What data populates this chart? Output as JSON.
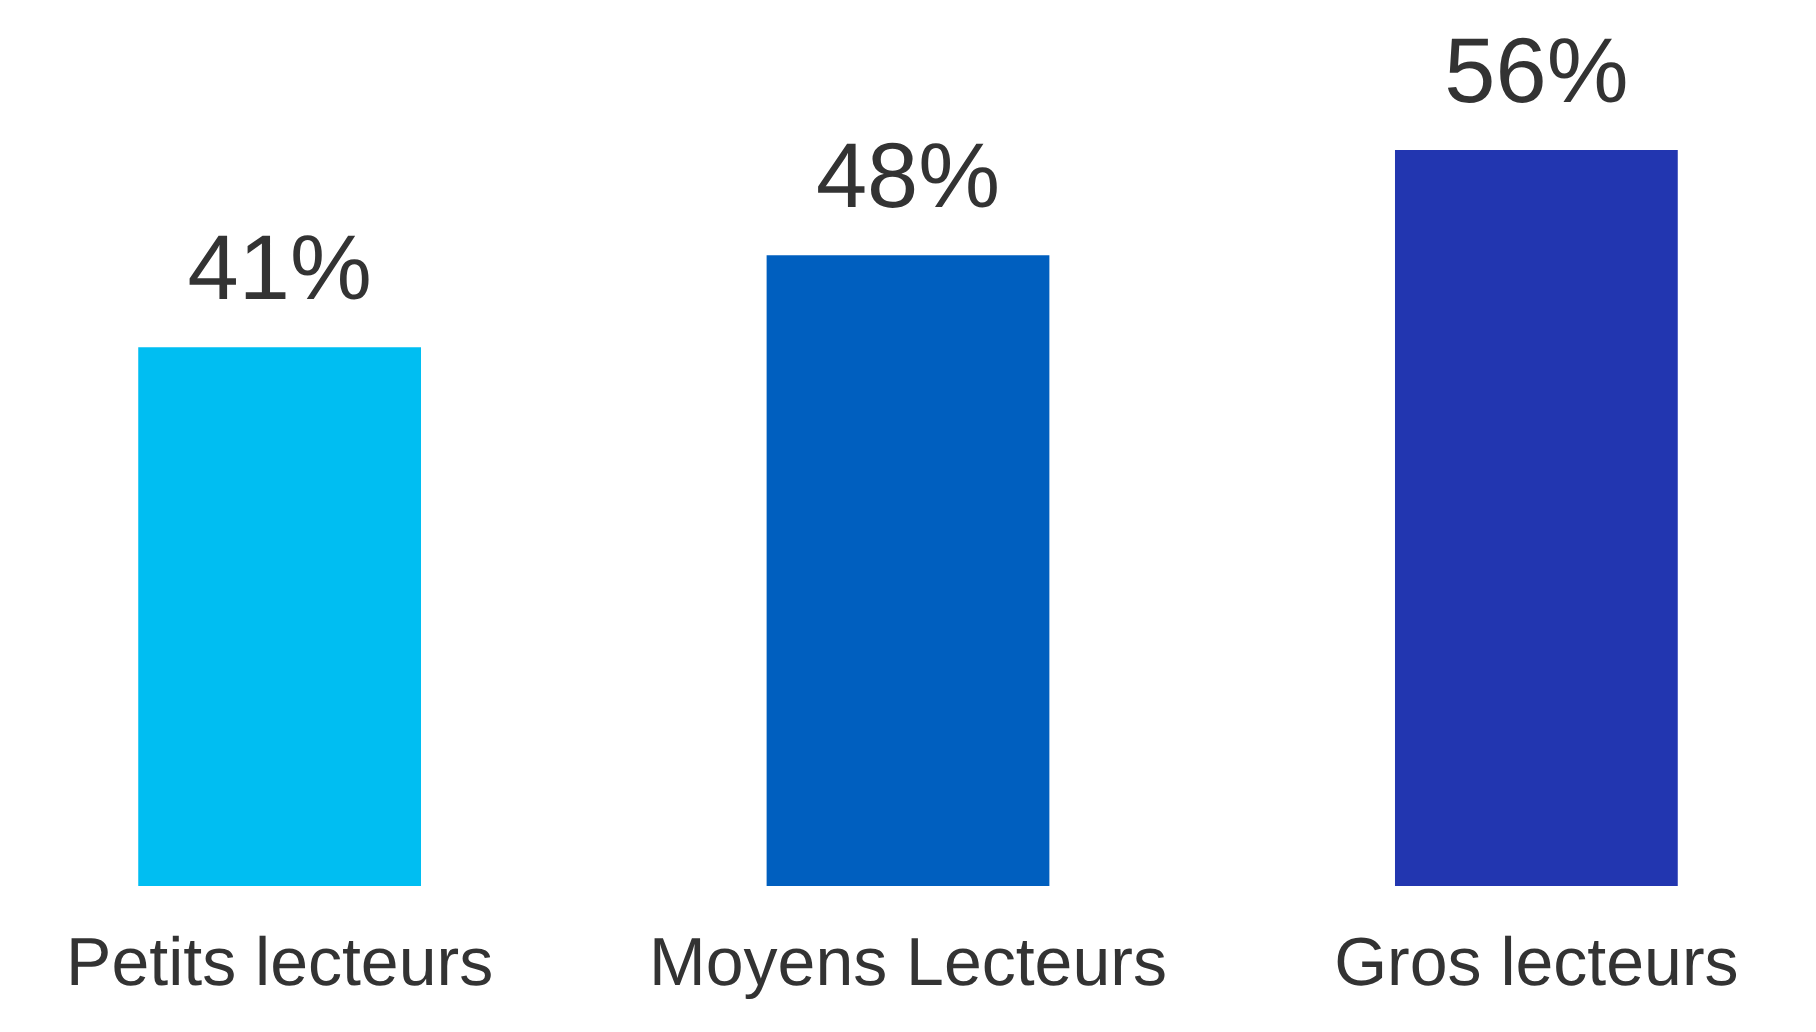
{
  "chart_data": {
    "type": "bar",
    "categories": [
      "Petits lecteurs",
      "Moyens Lecteurs",
      "Gros lecteurs"
    ],
    "values": [
      41,
      48,
      56
    ],
    "colors": [
      "#00bef2",
      "#005fbf",
      "#2236b0"
    ],
    "value_labels": [
      "41%",
      "48%",
      "56%"
    ]
  }
}
